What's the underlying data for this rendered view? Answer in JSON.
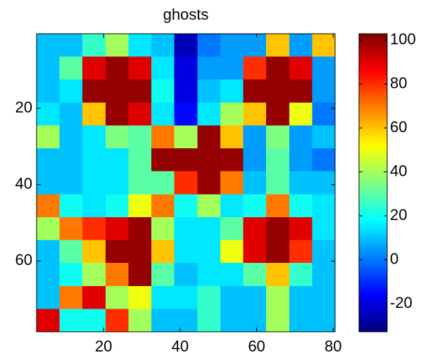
{
  "chart_data": {
    "type": "heatmap",
    "title": "ghosts",
    "colormap": "jet",
    "x": [
      5.5,
      11.5,
      17.5,
      23.5,
      29.5,
      35.5,
      41.5,
      47.5,
      53.5,
      59.5,
      65.5,
      71.5,
      77.5
    ],
    "y": [
      3.5,
      9.5,
      15.5,
      21.5,
      27.5,
      33.5,
      39.5,
      45.5,
      51.5,
      57.5,
      63.5,
      69.5,
      75.5
    ],
    "z": [
      [
        10,
        10,
        25,
        40,
        15,
        10,
        -25,
        0,
        5,
        5,
        60,
        5,
        60
      ],
      [
        10,
        30,
        90,
        100,
        90,
        15,
        -20,
        5,
        5,
        80,
        100,
        90,
        5
      ],
      [
        10,
        15,
        100,
        100,
        100,
        20,
        -20,
        10,
        15,
        100,
        100,
        100,
        5
      ],
      [
        15,
        10,
        60,
        100,
        90,
        15,
        -15,
        15,
        40,
        60,
        100,
        50,
        0
      ],
      [
        40,
        10,
        15,
        35,
        30,
        70,
        40,
        100,
        60,
        5,
        35,
        5,
        10
      ],
      [
        10,
        10,
        15,
        15,
        30,
        100,
        100,
        100,
        100,
        5,
        30,
        5,
        0
      ],
      [
        10,
        10,
        15,
        15,
        30,
        30,
        80,
        100,
        70,
        10,
        30,
        10,
        10
      ],
      [
        70,
        20,
        15,
        20,
        50,
        70,
        20,
        40,
        15,
        20,
        70,
        20,
        15
      ],
      [
        40,
        70,
        80,
        90,
        100,
        40,
        15,
        15,
        30,
        90,
        100,
        90,
        15
      ],
      [
        10,
        30,
        60,
        100,
        100,
        60,
        15,
        15,
        50,
        90,
        100,
        80,
        10
      ],
      [
        10,
        20,
        40,
        70,
        100,
        30,
        10,
        15,
        15,
        30,
        60,
        25,
        10
      ],
      [
        10,
        70,
        90,
        40,
        50,
        15,
        15,
        25,
        10,
        10,
        40,
        10,
        10
      ],
      [
        90,
        20,
        20,
        80,
        40,
        10,
        10,
        25,
        10,
        10,
        40,
        10,
        10
      ]
    ],
    "xlim": [
      2.5,
      80.5
    ],
    "xticks": [
      20,
      40,
      60,
      80
    ],
    "ylim": [
      0.5,
      78.5
    ],
    "yticks": [
      20,
      40,
      60
    ],
    "y_reversed": true,
    "clim": [
      -32.8,
      102.9
    ],
    "cticks": [
      -20,
      0,
      20,
      40,
      60,
      80,
      100
    ]
  }
}
